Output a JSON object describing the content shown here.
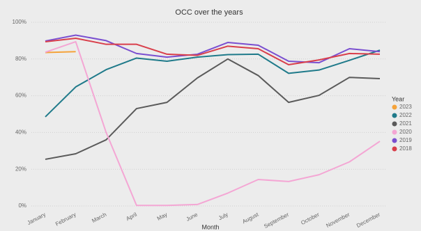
{
  "chart_data": {
    "type": "line",
    "title": "OCC over the years",
    "x_label": "Month",
    "legend_title": "Year",
    "legend_position": "right",
    "grid": true,
    "categories": [
      "January",
      "February",
      "March",
      "April",
      "May",
      "June",
      "July",
      "August",
      "September",
      "October",
      "November",
      "December"
    ],
    "ylim": [
      0,
      100
    ],
    "yticks": [
      {
        "value": 0,
        "label": "0%"
      },
      {
        "value": 20,
        "label": "20%"
      },
      {
        "value": 40,
        "label": "40%"
      },
      {
        "value": 60,
        "label": "60%"
      },
      {
        "value": 80,
        "label": "80%"
      },
      {
        "value": 100,
        "label": "100%"
      }
    ],
    "series": [
      {
        "name": "2023",
        "color": "#f5a33a",
        "values": [
          83.5,
          84,
          null,
          null,
          null,
          null,
          null,
          null,
          null,
          null,
          null,
          null
        ]
      },
      {
        "name": "2022",
        "color": "#1f7a8a",
        "values": [
          48.5,
          64.8,
          74.2,
          80.5,
          78.8,
          81,
          82.4,
          82.6,
          72.2,
          74,
          79.3,
          84.8
        ]
      },
      {
        "name": "2021",
        "color": "#5a5a5a",
        "values": [
          25.4,
          28.4,
          36,
          53,
          56.4,
          69.7,
          80,
          71,
          56.4,
          60.2,
          70,
          69.3
        ]
      },
      {
        "name": "2020",
        "color": "#f4a6d4",
        "values": [
          83.7,
          89.4,
          40,
          0.3,
          0.3,
          0.8,
          7,
          14.4,
          13.3,
          17,
          24,
          35.2
        ]
      },
      {
        "name": "2019",
        "color": "#7a4fd0",
        "values": [
          89.8,
          93,
          90,
          83,
          81,
          82.6,
          89,
          87.5,
          78.8,
          78,
          85.6,
          84
        ]
      },
      {
        "name": "2018",
        "color": "#d93f4b",
        "values": [
          89.4,
          91.3,
          88,
          88,
          82.6,
          82,
          87,
          85.6,
          76.9,
          79.5,
          83,
          82.6
        ]
      }
    ]
  }
}
